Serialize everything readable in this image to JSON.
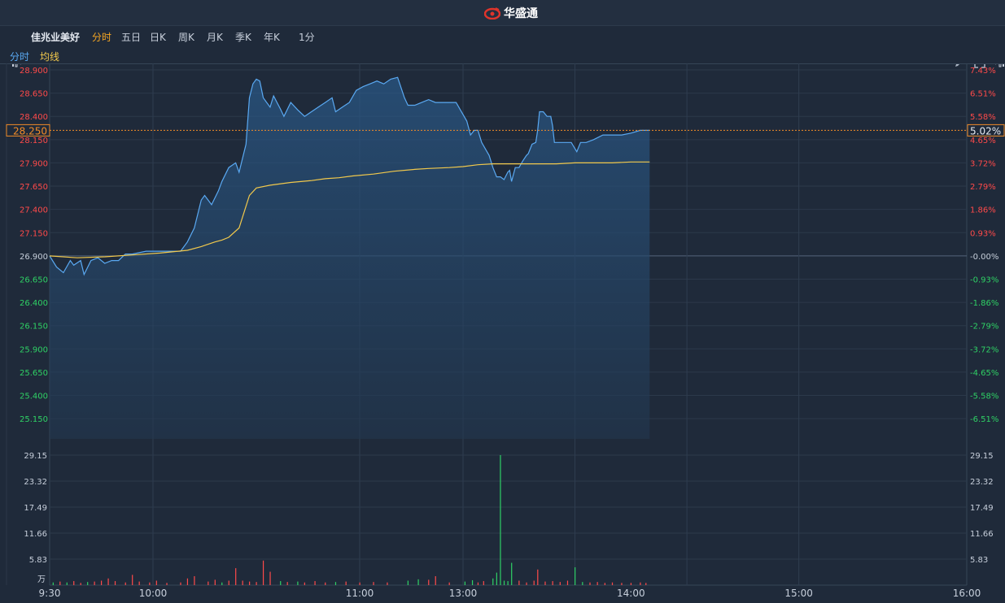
{
  "app": {
    "brand": "华盛通",
    "stock_name": "佳兆业美好"
  },
  "toolbar": {
    "tabs": [
      "分时",
      "五日",
      "日K",
      "周K",
      "月K",
      "季K",
      "年K"
    ],
    "active_tab": "分时",
    "interval": "1分"
  },
  "legend": {
    "line_label": "分时",
    "avg_label": "均线"
  },
  "colors": {
    "up": "#ff4a4a",
    "down": "#2fd165",
    "price_line": "#5aa9f2",
    "avg_line": "#f2c94c",
    "active_tab": "#f5a623",
    "accent_orange": "#f28c28"
  },
  "current": {
    "price": "28.250",
    "change_pct": "5.02%"
  },
  "chart_data": {
    "type": "line",
    "price_axis": {
      "labels": [
        "28.900",
        "28.650",
        "28.400",
        "28.150",
        "27.900",
        "27.650",
        "27.400",
        "27.150",
        "26.900",
        "26.650",
        "26.400",
        "26.150",
        "25.900",
        "25.650",
        "25.400",
        "25.150"
      ],
      "min": 25.02,
      "max": 28.9,
      "prev_close": 26.9
    },
    "pct_axis": {
      "labels": [
        "7.43%",
        "6.51%",
        "5.58%",
        "4.65%",
        "3.72%",
        "2.79%",
        "1.86%",
        "0.93%",
        "-0.00%",
        "-0.93%",
        "-1.86%",
        "-2.79%",
        "-3.72%",
        "-4.65%",
        "-5.58%",
        "-6.51%"
      ]
    },
    "volume_axis": {
      "labels": [
        "29.15",
        "23.32",
        "17.49",
        "11.66",
        "5.83"
      ],
      "unit": "万",
      "max": 29.15
    },
    "x_labels": [
      "9:30",
      "10:00",
      "11:00",
      "13:00",
      "14:00",
      "15:00",
      "16:00"
    ],
    "session_minutes": 390,
    "price_series": [
      [
        0,
        26.9
      ],
      [
        2,
        26.78
      ],
      [
        4,
        26.72
      ],
      [
        6,
        26.85
      ],
      [
        7,
        26.8
      ],
      [
        9,
        26.85
      ],
      [
        10,
        26.7
      ],
      [
        12,
        26.85
      ],
      [
        14,
        26.88
      ],
      [
        16,
        26.82
      ],
      [
        18,
        26.85
      ],
      [
        20,
        26.85
      ],
      [
        22,
        26.92
      ],
      [
        24,
        26.92
      ],
      [
        28,
        26.95
      ],
      [
        32,
        26.95
      ],
      [
        36,
        26.95
      ],
      [
        38,
        26.95
      ],
      [
        40,
        27.05
      ],
      [
        42,
        27.2
      ],
      [
        44,
        27.5
      ],
      [
        45,
        27.55
      ],
      [
        47,
        27.45
      ],
      [
        49,
        27.6
      ],
      [
        50,
        27.7
      ],
      [
        52,
        27.85
      ],
      [
        54,
        27.9
      ],
      [
        55,
        27.8
      ],
      [
        57,
        28.1
      ],
      [
        58,
        28.6
      ],
      [
        59,
        28.75
      ],
      [
        60,
        28.8
      ],
      [
        61,
        28.78
      ],
      [
        62,
        28.6
      ],
      [
        63,
        28.55
      ],
      [
        64,
        28.5
      ],
      [
        65,
        28.62
      ],
      [
        66,
        28.55
      ],
      [
        67,
        28.48
      ],
      [
        68,
        28.4
      ],
      [
        70,
        28.55
      ],
      [
        72,
        28.47
      ],
      [
        74,
        28.4
      ],
      [
        76,
        28.45
      ],
      [
        78,
        28.5
      ],
      [
        80,
        28.55
      ],
      [
        82,
        28.6
      ],
      [
        83,
        28.45
      ],
      [
        85,
        28.5
      ],
      [
        87,
        28.55
      ],
      [
        89,
        28.68
      ],
      [
        91,
        28.72
      ],
      [
        93,
        28.75
      ],
      [
        95,
        28.78
      ],
      [
        97,
        28.75
      ],
      [
        99,
        28.8
      ],
      [
        101,
        28.82
      ],
      [
        103,
        28.6
      ],
      [
        104,
        28.52
      ],
      [
        106,
        28.52
      ],
      [
        108,
        28.55
      ],
      [
        110,
        28.58
      ],
      [
        112,
        28.55
      ],
      [
        114,
        28.55
      ],
      [
        116,
        28.55
      ],
      [
        118,
        28.55
      ],
      [
        120,
        28.42
      ],
      [
        122,
        28.35
      ],
      [
        124,
        28.2
      ],
      [
        126,
        28.25
      ],
      [
        128,
        28.25
      ],
      [
        130,
        28.12
      ],
      [
        132,
        28.05
      ],
      [
        134,
        27.98
      ],
      [
        136,
        27.85
      ],
      [
        138,
        27.75
      ],
      [
        140,
        27.75
      ],
      [
        142,
        27.72
      ],
      [
        144,
        27.8
      ],
      [
        145,
        27.82
      ],
      [
        146,
        27.7
      ],
      [
        148,
        27.85
      ],
      [
        150,
        27.85
      ],
      [
        152,
        27.92
      ],
      [
        154,
        27.98
      ],
      [
        155,
        28.0
      ],
      [
        157,
        28.1
      ],
      [
        159,
        28.12
      ],
      [
        160,
        28.25
      ],
      [
        161,
        28.45
      ],
      [
        163,
        28.45
      ],
      [
        165,
        28.4
      ],
      [
        167,
        28.4
      ],
      [
        168,
        28.3
      ],
      [
        169,
        28.12
      ],
      [
        171,
        28.12
      ],
      [
        175,
        28.12
      ],
      [
        178,
        28.12
      ],
      [
        181,
        28.02
      ],
      [
        183,
        28.12
      ],
      [
        186,
        28.12
      ],
      [
        190,
        28.15
      ],
      [
        195,
        28.2
      ],
      [
        200,
        28.2
      ],
      [
        205,
        28.2
      ],
      [
        210,
        28.22
      ],
      [
        215,
        28.25
      ],
      [
        220,
        28.25
      ]
    ],
    "avg_series": [
      [
        0,
        26.9
      ],
      [
        8,
        26.88
      ],
      [
        16,
        26.89
      ],
      [
        24,
        26.91
      ],
      [
        32,
        26.93
      ],
      [
        40,
        26.96
      ],
      [
        44,
        27.0
      ],
      [
        48,
        27.05
      ],
      [
        50,
        27.07
      ],
      [
        52,
        27.1
      ],
      [
        55,
        27.2
      ],
      [
        58,
        27.55
      ],
      [
        60,
        27.63
      ],
      [
        64,
        27.66
      ],
      [
        70,
        27.69
      ],
      [
        76,
        27.71
      ],
      [
        80,
        27.73
      ],
      [
        84,
        27.74
      ],
      [
        88,
        27.76
      ],
      [
        94,
        27.78
      ],
      [
        100,
        27.81
      ],
      [
        106,
        27.83
      ],
      [
        110,
        27.84
      ],
      [
        116,
        27.85
      ],
      [
        120,
        27.86
      ],
      [
        128,
        27.88
      ],
      [
        136,
        27.89
      ],
      [
        144,
        27.89
      ],
      [
        150,
        27.89
      ],
      [
        160,
        27.89
      ],
      [
        170,
        27.89
      ],
      [
        180,
        27.9
      ],
      [
        190,
        27.9
      ],
      [
        200,
        27.9
      ],
      [
        210,
        27.91
      ],
      [
        220,
        27.91
      ]
    ],
    "volume": [
      [
        1,
        0.6,
        "d"
      ],
      [
        3,
        0.8,
        "u"
      ],
      [
        5,
        0.6,
        "d"
      ],
      [
        7,
        0.9,
        "u"
      ],
      [
        9,
        0.5,
        "u"
      ],
      [
        11,
        0.7,
        "d"
      ],
      [
        13,
        0.8,
        "u"
      ],
      [
        15,
        1.0,
        "u"
      ],
      [
        17,
        1.5,
        "u"
      ],
      [
        19,
        0.9,
        "u"
      ],
      [
        22,
        0.6,
        "u"
      ],
      [
        24,
        2.3,
        "u"
      ],
      [
        26,
        0.8,
        "u"
      ],
      [
        29,
        0.6,
        "u"
      ],
      [
        31,
        1.0,
        "u"
      ],
      [
        34,
        0.5,
        "u"
      ],
      [
        38,
        0.6,
        "u"
      ],
      [
        40,
        1.5,
        "u"
      ],
      [
        42,
        2.0,
        "u"
      ],
      [
        46,
        0.8,
        "u"
      ],
      [
        48,
        1.2,
        "u"
      ],
      [
        50,
        0.6,
        "d"
      ],
      [
        52,
        1.0,
        "u"
      ],
      [
        54,
        3.8,
        "u"
      ],
      [
        56,
        1.0,
        "u"
      ],
      [
        58,
        0.8,
        "u"
      ],
      [
        60,
        0.7,
        "u"
      ],
      [
        62,
        5.5,
        "u"
      ],
      [
        64,
        3.0,
        "u"
      ],
      [
        67,
        0.9,
        "d"
      ],
      [
        69,
        0.7,
        "u"
      ],
      [
        72,
        0.8,
        "d"
      ],
      [
        74,
        0.6,
        "u"
      ],
      [
        77,
        0.9,
        "u"
      ],
      [
        80,
        0.6,
        "u"
      ],
      [
        83,
        0.7,
        "d"
      ],
      [
        86,
        0.8,
        "u"
      ],
      [
        90,
        0.6,
        "u"
      ],
      [
        94,
        0.7,
        "u"
      ],
      [
        98,
        0.6,
        "u"
      ],
      [
        104,
        1.0,
        "d"
      ],
      [
        107,
        1.3,
        "d"
      ],
      [
        110,
        1.2,
        "u"
      ],
      [
        112,
        2.0,
        "u"
      ],
      [
        116,
        0.6,
        "u"
      ],
      [
        121,
        0.8,
        "d"
      ],
      [
        125,
        1.1,
        "d"
      ],
      [
        128,
        0.6,
        "u"
      ],
      [
        131,
        0.9,
        "u"
      ],
      [
        136,
        1.5,
        "d"
      ],
      [
        138,
        2.8,
        "d"
      ],
      [
        140,
        29.15,
        "d"
      ],
      [
        142,
        1.0,
        "d"
      ],
      [
        144,
        0.9,
        "d"
      ],
      [
        146,
        5.0,
        "d"
      ],
      [
        150,
        1.0,
        "u"
      ],
      [
        154,
        0.6,
        "u"
      ],
      [
        158,
        1.0,
        "u"
      ],
      [
        160,
        3.5,
        "u"
      ],
      [
        164,
        0.8,
        "u"
      ],
      [
        168,
        0.9,
        "u"
      ],
      [
        172,
        0.7,
        "u"
      ],
      [
        176,
        1.0,
        "u"
      ],
      [
        180,
        4.0,
        "d"
      ],
      [
        184,
        0.7,
        "d"
      ],
      [
        188,
        0.6,
        "u"
      ],
      [
        192,
        0.7,
        "u"
      ],
      [
        196,
        0.5,
        "u"
      ],
      [
        200,
        0.6,
        "u"
      ],
      [
        205,
        0.5,
        "u"
      ],
      [
        210,
        0.5,
        "u"
      ],
      [
        215,
        0.6,
        "u"
      ],
      [
        218,
        0.5,
        "u"
      ]
    ]
  }
}
